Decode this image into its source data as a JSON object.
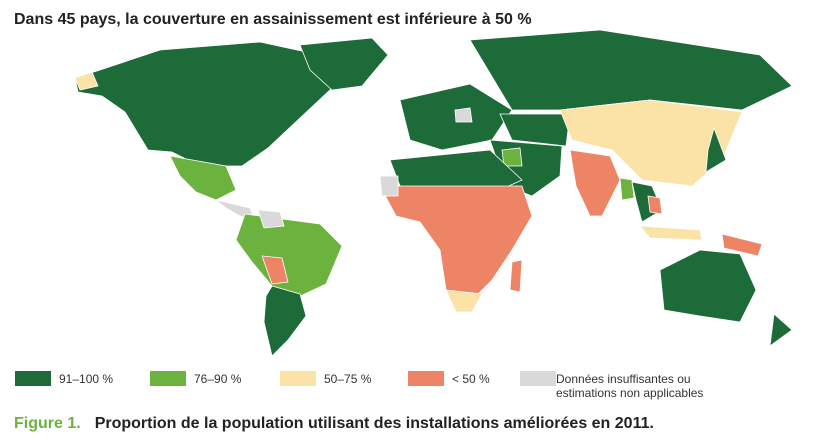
{
  "header": {
    "title": "Dans 45 pays, la couverture en assainissement est inférieure à 50 %"
  },
  "legend": [
    {
      "label": "91–100 %",
      "color": "#1d6b38"
    },
    {
      "label": "76–90 %",
      "color": "#6cb23f"
    },
    {
      "label": "50–75 %",
      "color": "#fbe2a6"
    },
    {
      "label": "< 50 %",
      "color": "#ee8466"
    },
    {
      "label": [
        "Données insuffisantes ou",
        "estimations non applicables"
      ],
      "color": "#d9d9d9"
    }
  ],
  "caption": {
    "number": "Figure 1.",
    "text": "Proportion de la population utilisant des installations améliorées en 2011."
  }
}
